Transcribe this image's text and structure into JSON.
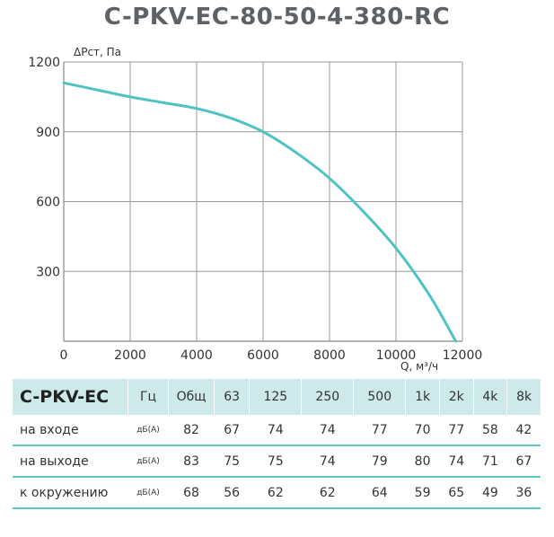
{
  "title": "C-PKV-EC-80-50-4-380-RC",
  "chart_data": {
    "type": "line",
    "ylabel": "ΔРст, Па",
    "xlabel": "Q, м³/ч",
    "xlim": [
      0,
      12000
    ],
    "ylim": [
      0,
      1200
    ],
    "xticks": [
      "0",
      "2000",
      "4000",
      "6000",
      "8000",
      "10000",
      "12000"
    ],
    "yticks": [
      "300",
      "600",
      "900",
      "1200"
    ],
    "grid": true,
    "line_color": "#4fc3c3",
    "series": [
      {
        "x": [
          0,
          1000,
          2000,
          3000,
          4000,
          5000,
          6000,
          7000,
          8000,
          9000,
          10000,
          11000,
          11800
        ],
        "values": [
          1110,
          1080,
          1050,
          1025,
          1000,
          960,
          900,
          810,
          700,
          560,
          400,
          200,
          0
        ]
      }
    ]
  },
  "table": {
    "model": "C-PKV-EC",
    "hz_label": "Гц",
    "total_label": "Общ",
    "bands": [
      "63",
      "125",
      "250",
      "500",
      "1k",
      "2k",
      "4k",
      "8k"
    ],
    "rows": [
      {
        "label": "на входе",
        "unit": "дБ(А)",
        "total": "82",
        "values": [
          "67",
          "74",
          "74",
          "77",
          "70",
          "77",
          "58",
          "42"
        ]
      },
      {
        "label": "на выходе",
        "unit": "дБ(А)",
        "total": "83",
        "values": [
          "75",
          "75",
          "74",
          "79",
          "80",
          "74",
          "71",
          "67"
        ]
      },
      {
        "label": "к окружению",
        "unit": "дБ(А)",
        "total": "68",
        "values": [
          "56",
          "62",
          "62",
          "64",
          "59",
          "65",
          "49",
          "36"
        ]
      }
    ],
    "header_color": "#cde9ea",
    "rule_color": "#5cc6c6"
  }
}
